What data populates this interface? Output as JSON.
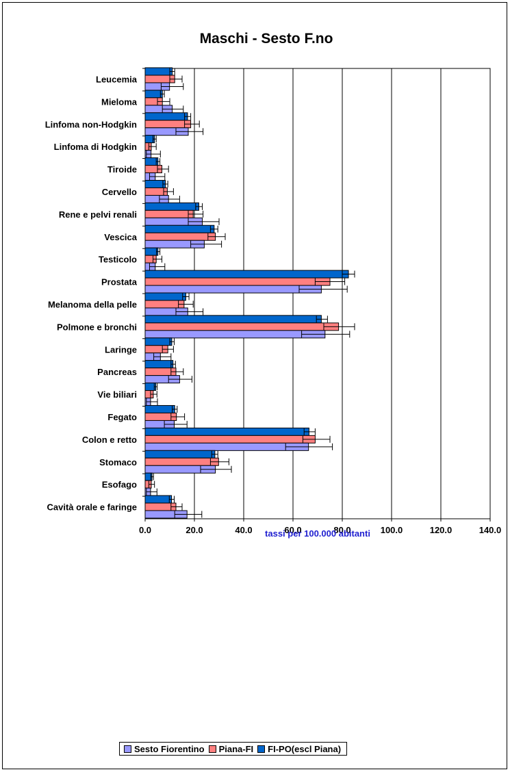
{
  "chart_data": {
    "type": "bar",
    "orientation": "horizontal",
    "title": "Maschi - Sesto F.no",
    "xlabel": "tassi per 100.000 abitanti",
    "ylabel": "",
    "xlim": [
      0,
      140
    ],
    "x_ticks": [
      "0.0",
      "20.0",
      "40.0",
      "60.0",
      "80.0",
      "100.0",
      "120.0",
      "140.0"
    ],
    "grid": "vertical",
    "legend_position": "bottom",
    "categories": [
      "Leucemia",
      "Mieloma",
      "Linfoma non-Hodgkin",
      "Linfoma di Hodgkin",
      "Tiroide",
      "Cervello",
      "Rene e pelvi renali",
      "Vescica",
      "Testicolo",
      "Prostata",
      "Melanoma della pelle",
      "Polmone e bronchi",
      "Laringe",
      "Pancreas",
      "Vie biliari",
      "Fegato",
      "Colon e retto",
      "Stomaco",
      "Esofago",
      "Cavità orale e faringe"
    ],
    "series": [
      {
        "name": "Sesto Fiorentino",
        "color": "#9999ff",
        "values": [
          9.9,
          11.0,
          17.5,
          2.4,
          4.1,
          9.5,
          23.2,
          24.0,
          4.1,
          71.5,
          17.3,
          73.0,
          6.2,
          14.0,
          2.2,
          11.8,
          66.3,
          28.5,
          2.2,
          17.0
        ],
        "ci_low": [
          6.5,
          7.0,
          12.5,
          0.5,
          1.8,
          5.8,
          17.5,
          18.5,
          1.8,
          62.5,
          12.5,
          63.5,
          3.5,
          9.5,
          0.5,
          7.8,
          57.0,
          22.5,
          0.5,
          12.0
        ],
        "ci_high": [
          15.5,
          15.5,
          23.5,
          6.2,
          8.0,
          14.0,
          30.0,
          31.0,
          8.0,
          82.0,
          23.5,
          83.0,
          10.5,
          19.0,
          5.0,
          17.0,
          76.0,
          35.0,
          4.8,
          23.0
        ]
      },
      {
        "name": "Piana-FI",
        "color": "#ff8080",
        "values": [
          12.0,
          7.0,
          18.5,
          2.5,
          6.8,
          9.0,
          19.5,
          28.5,
          4.5,
          75.0,
          15.8,
          78.5,
          9.2,
          12.5,
          3.3,
          12.7,
          69.0,
          29.8,
          2.5,
          12.5
        ],
        "ci_low": [
          10.0,
          5.0,
          16.0,
          1.5,
          5.0,
          7.5,
          17.5,
          25.5,
          3.2,
          69.0,
          13.5,
          72.5,
          7.0,
          10.5,
          2.2,
          10.5,
          64.0,
          26.5,
          1.5,
          10.5
        ],
        "ci_high": [
          15.0,
          10.0,
          22.0,
          4.5,
          9.5,
          11.5,
          23.5,
          32.5,
          6.8,
          81.0,
          19.5,
          85.0,
          11.5,
          15.5,
          4.8,
          16.0,
          75.0,
          34.0,
          3.8,
          15.0
        ]
      },
      {
        "name": "FI-PO(escl Piana)",
        "color": "#0066cc",
        "values": [
          11.0,
          7.0,
          17.2,
          3.8,
          5.2,
          8.2,
          21.8,
          28.0,
          5.2,
          82.5,
          16.5,
          71.5,
          10.8,
          11.3,
          4.3,
          12.0,
          66.5,
          28.3,
          2.8,
          10.7
        ],
        "ci_low": [
          10.0,
          6.2,
          16.0,
          3.2,
          4.5,
          7.2,
          20.5,
          26.5,
          4.6,
          80.0,
          15.2,
          69.5,
          10.0,
          10.5,
          3.7,
          11.0,
          64.5,
          27.0,
          2.3,
          9.8
        ],
        "ci_high": [
          12.0,
          7.8,
          18.5,
          4.5,
          6.0,
          9.2,
          23.2,
          29.5,
          6.0,
          85.0,
          17.8,
          74.0,
          11.8,
          12.3,
          4.9,
          13.0,
          69.0,
          29.5,
          3.4,
          11.8
        ]
      }
    ]
  }
}
